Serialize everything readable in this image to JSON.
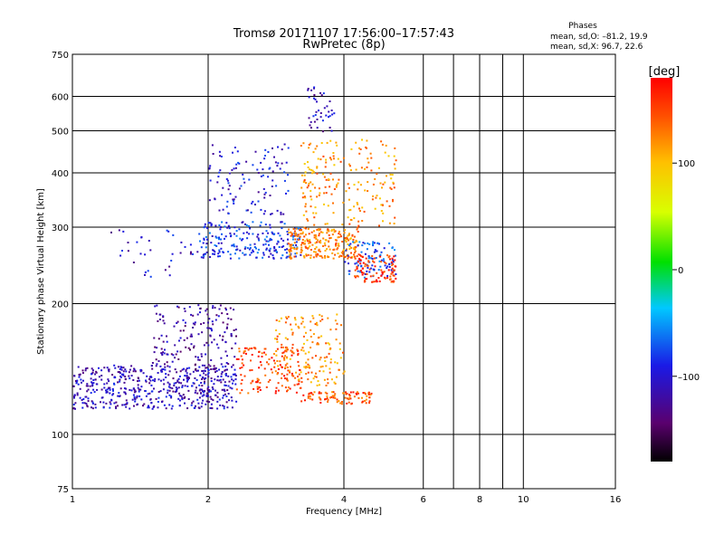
{
  "chart_data": {
    "type": "scatter",
    "title": "Tromsø 20171107 17:56:00–17:57:43",
    "subtitle": "RwPretec (8p)",
    "xlabel": "Frequency [MHz]",
    "ylabel": "Stationary phase Virtual Height [km]",
    "x_scale": "log",
    "y_scale": "log",
    "xlim": [
      1,
      16
    ],
    "ylim": [
      75,
      750
    ],
    "x_ticks": [
      1,
      2,
      4,
      6,
      8,
      10,
      16
    ],
    "x_tick_labels": [
      "1",
      "2",
      "4",
      "6",
      "8",
      "10",
      "16"
    ],
    "x_gridlines": [
      2,
      4,
      6,
      7,
      8,
      9,
      10
    ],
    "y_ticks": [
      75,
      100,
      200,
      300,
      400,
      500,
      600,
      750
    ],
    "y_tick_labels": [
      "75",
      "100",
      "200",
      "300",
      "400",
      "500",
      "600",
      "750"
    ],
    "y_gridlines": [
      100,
      200,
      300,
      400,
      500,
      600
    ],
    "grid": true,
    "legend_header": "Phases",
    "legend_lines": [
      "mean, sd,O: –81.2, 19.9",
      "mean, sd,X:  96.7, 22.6"
    ],
    "colorbar": {
      "label": "[deg]",
      "range": [
        -180,
        180
      ],
      "ticks": [
        100,
        0,
        -100
      ],
      "tick_labels": [
        "100",
        "0",
        "–100"
      ]
    },
    "clusters": [
      {
        "x_range": [
          1.0,
          2.3
        ],
        "y_range": [
          115,
          145
        ],
        "phase": -110,
        "count": 520
      },
      {
        "x_range": [
          1.5,
          2.3
        ],
        "y_range": [
          140,
          200
        ],
        "phase": -120,
        "count": 180
      },
      {
        "x_range": [
          2.3,
          3.2
        ],
        "y_range": [
          125,
          160
        ],
        "phase": 150,
        "count": 140
      },
      {
        "x_range": [
          3.2,
          4.6
        ],
        "y_range": [
          118,
          126
        ],
        "phase": 145,
        "count": 90
      },
      {
        "x_range": [
          2.8,
          4.0
        ],
        "y_range": [
          130,
          190
        ],
        "phase": 120,
        "count": 160
      },
      {
        "x_range": [
          1.9,
          3.2
        ],
        "y_range": [
          255,
          310
        ],
        "phase": -85,
        "count": 220
      },
      {
        "x_range": [
          2.0,
          3.0
        ],
        "y_range": [
          320,
          470
        ],
        "phase": -100,
        "count": 110
      },
      {
        "x_range": [
          3.0,
          4.3
        ],
        "y_range": [
          255,
          300
        ],
        "phase": 125,
        "count": 240
      },
      {
        "x_range": [
          3.2,
          5.2
        ],
        "y_range": [
          300,
          480
        ],
        "phase": 120,
        "count": 200
      },
      {
        "x_range": [
          4.0,
          5.2
        ],
        "y_range": [
          230,
          280
        ],
        "phase": -80,
        "count": 90
      },
      {
        "x_range": [
          4.2,
          5.2
        ],
        "y_range": [
          225,
          260
        ],
        "phase": 160,
        "count": 100
      },
      {
        "x_range": [
          1.2,
          1.9
        ],
        "y_range": [
          230,
          300
        ],
        "phase": -105,
        "count": 35
      },
      {
        "x_range": [
          3.3,
          3.8
        ],
        "y_range": [
          500,
          640
        ],
        "phase": -110,
        "count": 40
      }
    ]
  }
}
